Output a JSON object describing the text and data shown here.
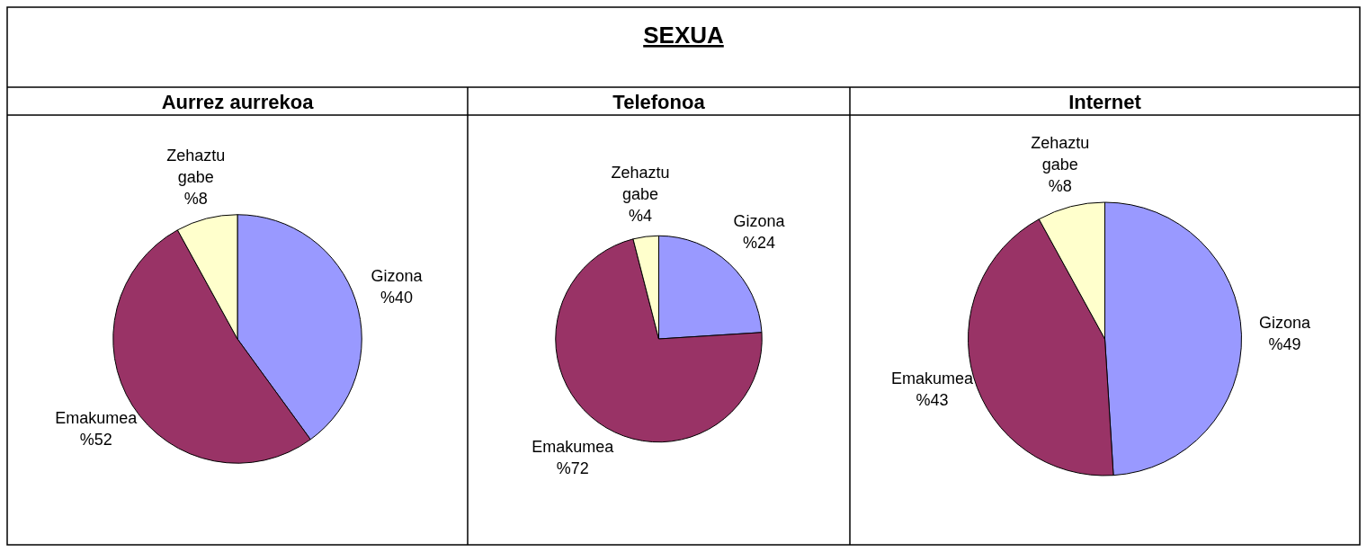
{
  "chart_data": [
    {
      "type": "other",
      "title": "SEXUA"
    },
    {
      "type": "pie",
      "title": "Aurrez aurrekoa",
      "categories": [
        "Gizona",
        "Emakumea",
        "Zehaztu gabe"
      ],
      "values": [
        40,
        52,
        8
      ],
      "colors": [
        "#9999ff",
        "#993366",
        "#ffffcc"
      ],
      "value_labels": [
        "%40",
        "%52",
        "%8"
      ]
    },
    {
      "type": "pie",
      "title": "Telefonoa",
      "categories": [
        "Gizona",
        "Emakumea",
        "Zehaztu gabe"
      ],
      "values": [
        24,
        72,
        4
      ],
      "colors": [
        "#9999ff",
        "#993366",
        "#ffffcc"
      ],
      "value_labels": [
        "%24",
        "%72",
        "%4"
      ]
    },
    {
      "type": "pie",
      "title": "Internet",
      "categories": [
        "Gizona",
        "Emakumea",
        "Zehaztu gabe"
      ],
      "values": [
        49,
        43,
        8
      ],
      "colors": [
        "#9999ff",
        "#993366",
        "#ffffcc"
      ],
      "value_labels": [
        "%49",
        "%43",
        "%8"
      ]
    }
  ]
}
